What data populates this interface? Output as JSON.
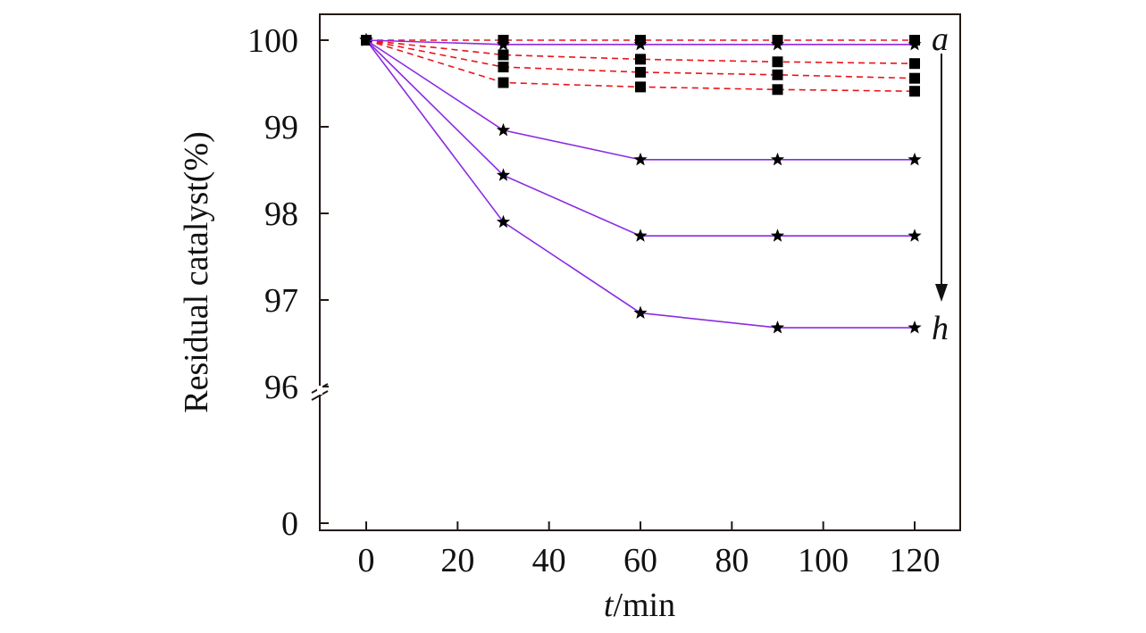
{
  "chart_data": {
    "type": "line",
    "title": "",
    "xlabel_italic": "t",
    "xlabel_rest": "/min",
    "ylabel": "Residual catalyst(%)",
    "xlim": [
      -10,
      130
    ],
    "xticks": [
      0,
      20,
      40,
      60,
      80,
      100,
      120
    ],
    "yticks": [
      100,
      99,
      98,
      97,
      96,
      0
    ],
    "y_axis_break": "between 96 and 0",
    "x": [
      0,
      30,
      60,
      90,
      120
    ],
    "series": [
      {
        "name": "dashed-1",
        "style": "dashed",
        "marker": "square",
        "values": [
          100,
          100.0,
          100.0,
          100.0,
          100.0
        ]
      },
      {
        "name": "dashed-2",
        "style": "dashed",
        "marker": "square",
        "values": [
          100,
          99.83,
          99.78,
          99.75,
          99.73
        ]
      },
      {
        "name": "dashed-3",
        "style": "dashed",
        "marker": "square",
        "values": [
          100,
          99.69,
          99.63,
          99.6,
          99.56
        ]
      },
      {
        "name": "dashed-4",
        "style": "dashed",
        "marker": "square",
        "values": [
          100,
          99.51,
          99.46,
          99.43,
          99.41
        ]
      },
      {
        "name": "solid-1",
        "style": "solid",
        "marker": "star",
        "values": [
          100,
          99.95,
          99.95,
          99.95,
          99.95
        ]
      },
      {
        "name": "solid-2",
        "style": "solid",
        "marker": "star",
        "values": [
          100,
          98.96,
          98.62,
          98.62,
          98.62
        ]
      },
      {
        "name": "solid-3",
        "style": "solid",
        "marker": "star",
        "values": [
          100,
          98.44,
          97.74,
          97.74,
          97.74
        ]
      },
      {
        "name": "solid-4",
        "style": "solid",
        "marker": "star",
        "values": [
          100,
          97.9,
          96.85,
          96.68,
          96.68
        ]
      }
    ],
    "annotations": [
      {
        "text": "a",
        "anchor": "top of arrow, near 100"
      },
      {
        "text": "h",
        "anchor": "bottom of arrow, near 96.7"
      }
    ],
    "colors": {
      "dashed": "#e8151b",
      "solid": "#8a2be2",
      "marker": "#000000",
      "axis": "#231815"
    }
  }
}
